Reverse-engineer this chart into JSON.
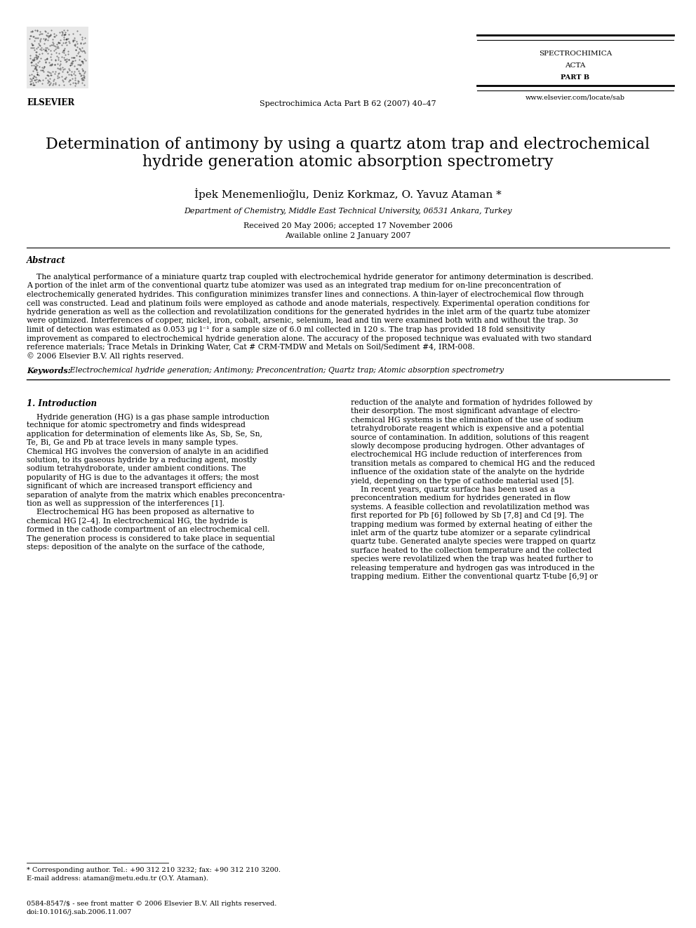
{
  "bg_color": "#ffffff",
  "journal_center": "Spectrochimica Acta Part B 62 (2007) 40–47",
  "journal_right1": "SPECTROCHIMICA",
  "journal_right2": "ACTA",
  "journal_right3": "PART B",
  "journal_url": "www.elsevier.com/locate/sab",
  "title_line1": "Determination of antimony by using a quartz atom trap and electrochemical",
  "title_line2": "hydride generation atomic absorption spectrometry",
  "authors": "İpek Menemenlioğlu, Deniz Korkmaz, O. Yavuz Ataman *",
  "affiliation": "Department of Chemistry, Middle East Technical University, 06531 Ankara, Turkey",
  "received": "Received 20 May 2006; accepted 17 November 2006",
  "available": "Available online 2 January 2007",
  "abstract_heading": "Abstract",
  "abstract_lines": [
    "    The analytical performance of a miniature quartz trap coupled with electrochemical hydride generator for antimony determination is described.",
    "A portion of the inlet arm of the conventional quartz tube atomizer was used as an integrated trap medium for on-line preconcentration of",
    "electrochemically generated hydrides. This configuration minimizes transfer lines and connections. A thin-layer of electrochemical flow through",
    "cell was constructed. Lead and platinum foils were employed as cathode and anode materials, respectively. Experimental operation conditions for",
    "hydride generation as well as the collection and revolatilization conditions for the generated hydrides in the inlet arm of the quartz tube atomizer",
    "were optimized. Interferences of copper, nickel, iron, cobalt, arsenic, selenium, lead and tin were examined both with and without the trap. 3σ",
    "limit of detection was estimated as 0.053 μg l⁻¹ for a sample size of 6.0 ml collected in 120 s. The trap has provided 18 fold sensitivity",
    "improvement as compared to electrochemical hydride generation alone. The accuracy of the proposed technique was evaluated with two standard",
    "reference materials; Trace Metals in Drinking Water, Cat # CRM-TMDW and Metals on Soil/Sediment #4, IRM-008.",
    "© 2006 Elsevier B.V. All rights reserved."
  ],
  "keywords_bold": "Keywords:",
  "keywords_text": " Electrochemical hydride generation; Antimony; Preconcentration; Quartz trap; Atomic absorption spectrometry",
  "section1": "1. Introduction",
  "intro_left_lines": [
    "    Hydride generation (HG) is a gas phase sample introduction",
    "technique for atomic spectrometry and finds widespread",
    "application for determination of elements like As, Sb, Se, Sn,",
    "Te, Bi, Ge and Pb at trace levels in many sample types.",
    "Chemical HG involves the conversion of analyte in an acidified",
    "solution, to its gaseous hydride by a reducing agent, mostly",
    "sodium tetrahydroborate, under ambient conditions. The",
    "popularity of HG is due to the advantages it offers; the most",
    "significant of which are increased transport efficiency and",
    "separation of analyte from the matrix which enables preconcentra-",
    "tion as well as suppression of the interferences [1].",
    "    Electrochemical HG has been proposed as alternative to",
    "chemical HG [2–4]. In electrochemical HG, the hydride is",
    "formed in the cathode compartment of an electrochemical cell.",
    "The generation process is considered to take place in sequential",
    "steps: deposition of the analyte on the surface of the cathode,"
  ],
  "intro_right_lines": [
    "reduction of the analyte and formation of hydrides followed by",
    "their desorption. The most significant advantage of electro-",
    "chemical HG systems is the elimination of the use of sodium",
    "tetrahydroborate reagent which is expensive and a potential",
    "source of contamination. In addition, solutions of this reagent",
    "slowly decompose producing hydrogen. Other advantages of",
    "electrochemical HG include reduction of interferences from",
    "transition metals as compared to chemical HG and the reduced",
    "influence of the oxidation state of the analyte on the hydride",
    "yield, depending on the type of cathode material used [5].",
    "    In recent years, quartz surface has been used as a",
    "preconcentration medium for hydrides generated in flow",
    "systems. A feasible collection and revolatilization method was",
    "first reported for Pb [6] followed by Sb [7,8] and Cd [9]. The",
    "trapping medium was formed by external heating of either the",
    "inlet arm of the quartz tube atomizer or a separate cylindrical",
    "quartz tube. Generated analyte species were trapped on quartz",
    "surface heated to the collection temperature and the collected",
    "species were revolatilized when the trap was heated further to",
    "releasing temperature and hydrogen gas was introduced in the",
    "trapping medium. Either the conventional quartz T-tube [6,9] or"
  ],
  "footnote1": "* Corresponding author. Tel.: +90 312 210 3232; fax: +90 312 210 3200.",
  "footnote2": "E-mail address: ataman@metu.edu.tr (O.Y. Ataman).",
  "footer1": "0584-8547/$ - see front matter © 2006 Elsevier B.V. All rights reserved.",
  "footer2": "doi:10.1016/j.sab.2006.11.007"
}
